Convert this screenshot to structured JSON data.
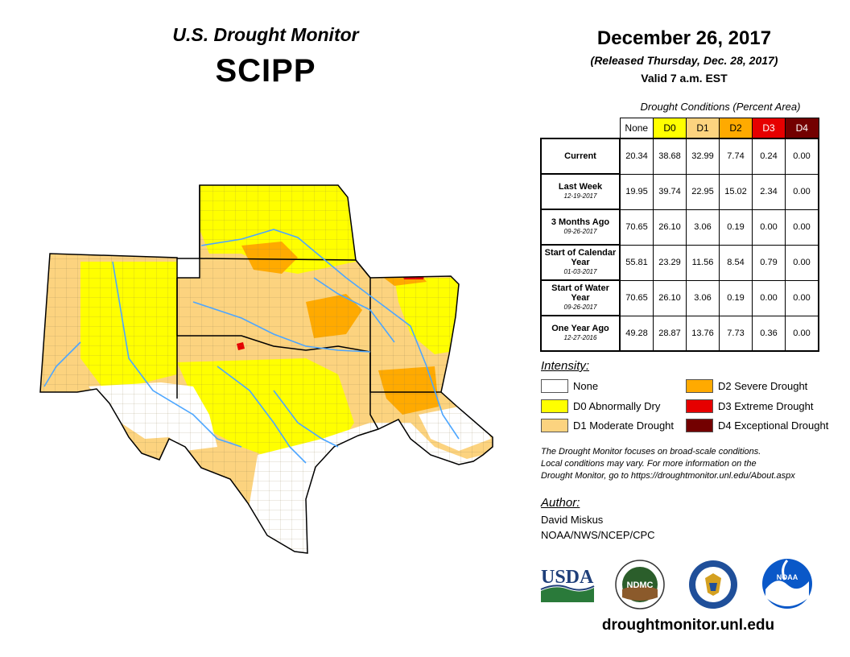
{
  "header": {
    "monitor_title": "U.S. Drought Monitor",
    "region": "SCIPP",
    "date": "December 26, 2017",
    "released": "(Released Thursday, Dec. 28, 2017)",
    "valid": "Valid 7 a.m. EST"
  },
  "table": {
    "caption": "Drought Conditions (Percent Area)",
    "columns": [
      "None",
      "D0",
      "D1",
      "D2",
      "D3",
      "D4"
    ],
    "rows": [
      {
        "label": "Current",
        "sub": "",
        "values": [
          "20.34",
          "38.68",
          "32.99",
          "7.74",
          "0.24",
          "0.00"
        ]
      },
      {
        "label": "Last Week",
        "sub": "12-19-2017",
        "values": [
          "19.95",
          "39.74",
          "22.95",
          "15.02",
          "2.34",
          "0.00"
        ]
      },
      {
        "label": "3 Months Ago",
        "sub": "09-26-2017",
        "values": [
          "70.65",
          "26.10",
          "3.06",
          "0.19",
          "0.00",
          "0.00"
        ]
      },
      {
        "label": "Start of Calendar Year",
        "sub": "01-03-2017",
        "values": [
          "55.81",
          "23.29",
          "11.56",
          "8.54",
          "0.79",
          "0.00"
        ]
      },
      {
        "label": "Start of Water Year",
        "sub": "09-26-2017",
        "values": [
          "70.65",
          "26.10",
          "3.06",
          "0.19",
          "0.00",
          "0.00"
        ]
      },
      {
        "label": "One Year Ago",
        "sub": "12-27-2016",
        "values": [
          "49.28",
          "28.87",
          "13.76",
          "7.73",
          "0.36",
          "0.00"
        ]
      }
    ]
  },
  "legend": {
    "title": "Intensity:",
    "items": [
      {
        "label": "None",
        "color": "#ffffff"
      },
      {
        "label": "D0 Abnormally Dry",
        "color": "#ffff00"
      },
      {
        "label": "D1 Moderate Drought",
        "color": "#fcd37f"
      },
      {
        "label": "D2 Severe Drought",
        "color": "#ffaa00"
      },
      {
        "label": "D3 Extreme Drought",
        "color": "#e60000"
      },
      {
        "label": "D4 Exceptional Drought",
        "color": "#730000"
      }
    ]
  },
  "note": {
    "line1": "The Drought Monitor focuses on broad-scale conditions.",
    "line2": "Local conditions may vary. For more information on the",
    "line3": "Drought Monitor, go to https://droughtmonitor.unl.edu/About.aspx"
  },
  "author": {
    "title": "Author:",
    "name": "David Miskus",
    "org": "NOAA/NWS/NCEP/CPC"
  },
  "logos": {
    "usda": "USDA",
    "ndmc": "NDMC",
    "noaa": "NOAA"
  },
  "footer": {
    "site": "droughtmonitor.unl.edu"
  },
  "colors": {
    "none": "#ffffff",
    "d0": "#ffff00",
    "d1": "#fcd37f",
    "d2": "#ffaa00",
    "d3": "#e60000",
    "d4": "#730000",
    "river": "#4da6ff"
  }
}
